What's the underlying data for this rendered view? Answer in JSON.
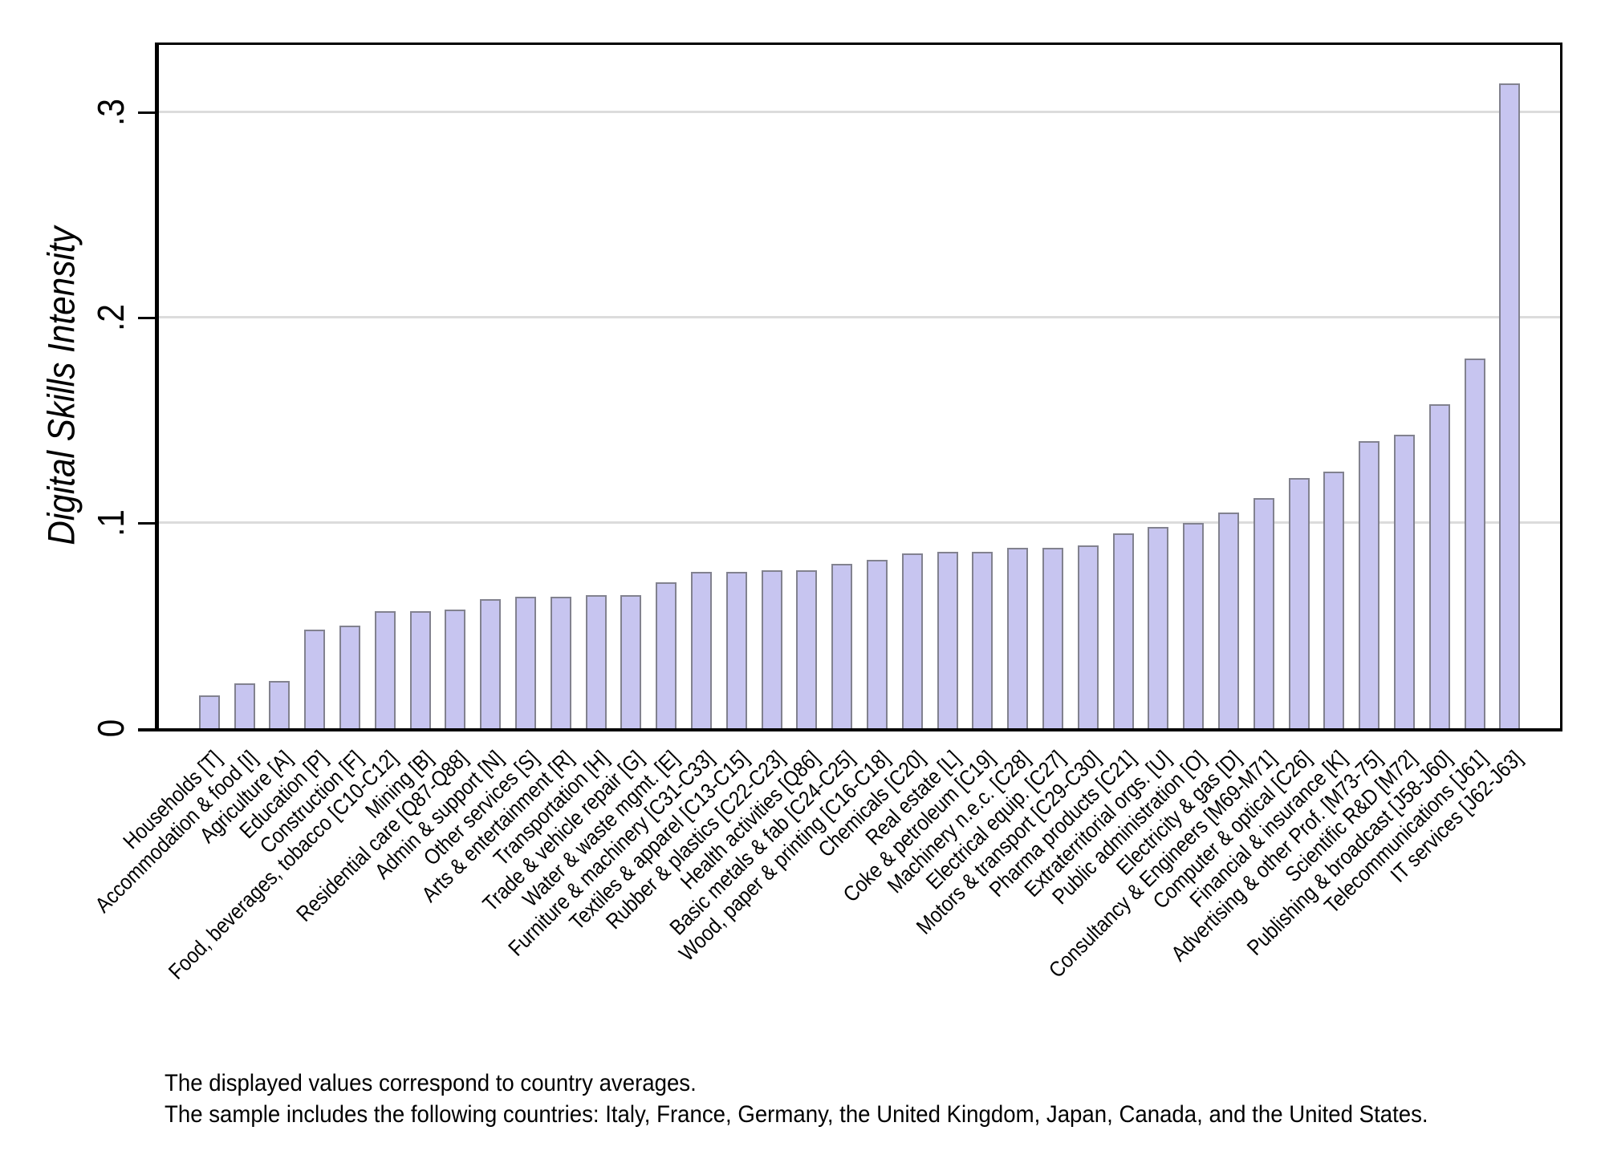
{
  "chart_data": {
    "type": "bar",
    "title": "",
    "xlabel": "",
    "ylabel": "Digital Skills Intensity",
    "ylim": [
      0,
      0.335
    ],
    "yticks": [
      "0",
      ".1",
      ".2",
      ".3"
    ],
    "ytick_values": [
      0,
      0.1,
      0.2,
      0.3
    ],
    "grid": "horizontal-light-gray",
    "legend": "none",
    "bar_fill_color": "#c7c5f0",
    "bar_border_color": "#82828f",
    "gridline_color": "#dcdcdc",
    "categories": [
      "Households [T]",
      "Accommodation & food [I]",
      "Agriculture [A]",
      "Education [P]",
      "Construction [F]",
      "Food, beverages, tobacco [C10-C12]",
      "Mining [B]",
      "Residential care [Q87-Q88]",
      "Admin & support [N]",
      "Other services [S]",
      "Arts & entertainment [R]",
      "Transportation [H]",
      "Trade & vehicle repair [G]",
      "Water & waste mgmt. [E]",
      "Furniture & machinery [C31-C33]",
      "Textiles & apparel [C13-C15]",
      "Rubber & plastics [C22-C23]",
      "Health activities [Q86]",
      "Basic metals & fab [C24-C25]",
      "Wood, paper & printing [C16-C18]",
      "Chemicals [C20]",
      "Real estate [L]",
      "Coke & petroleum [C19]",
      "Machinery n.e.c. [C28]",
      "Electrical equip. [C27]",
      "Motors & transport [C29-C30]",
      "Pharma products [C21]",
      "Extraterritorial orgs. [U]",
      "Public administration [O]",
      "Electricity & gas [D]",
      "Consultancy & Engineers [M69-M71]",
      "Computer & optical [C26]",
      "Financial & insurance [K]",
      "Advertising & other Prof. [M73-75]",
      "Scientific R&D [M72]",
      "Publishing & broadcast [J58-J60]",
      "Telecommunications [J61]",
      "IT services [J62-J63]"
    ],
    "values": [
      0.016,
      0.022,
      0.023,
      0.048,
      0.05,
      0.057,
      0.057,
      0.058,
      0.063,
      0.064,
      0.064,
      0.065,
      0.065,
      0.071,
      0.076,
      0.076,
      0.077,
      0.077,
      0.08,
      0.082,
      0.085,
      0.086,
      0.086,
      0.088,
      0.088,
      0.089,
      0.095,
      0.098,
      0.1,
      0.105,
      0.112,
      0.122,
      0.125,
      0.14,
      0.143,
      0.158,
      0.18,
      0.314
    ]
  },
  "notes": {
    "line1": "The displayed values correspond to country averages.",
    "line2": "The sample includes the following countries: Italy, France, Germany, the United Kingdom, Japan, Canada, and the United States."
  }
}
